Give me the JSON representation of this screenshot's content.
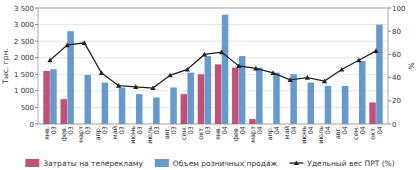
{
  "chart_data": {
    "type": "bar",
    "categories": [
      "янв.\n03",
      "фев.\n03",
      "март\n03",
      "апр.\n03",
      "май\n03",
      "июнь\n03",
      "июль\n03",
      "авг.\n03",
      "сен.\n03",
      "окт.\n03",
      "янв.\n04",
      "фев.\n04",
      "март\n04",
      "апр.\n04",
      "май\n04",
      "июнь\n04",
      "июль\n04",
      "авг.\n04",
      "сен.\n04",
      "окт.\n04"
    ],
    "series": [
      {
        "name": "Затраты на телерекламу",
        "color": "#c0507a",
        "values": [
          1600,
          750,
          0,
          0,
          0,
          0,
          0,
          0,
          900,
          1500,
          1800,
          1700,
          150,
          0,
          0,
          0,
          0,
          0,
          0,
          650
        ]
      },
      {
        "name": "Объем розничных продаж",
        "color": "#6699cc",
        "values": [
          1650,
          2800,
          1480,
          1250,
          1100,
          900,
          800,
          1100,
          1550,
          2050,
          3300,
          2050,
          1700,
          1550,
          1500,
          1250,
          1150,
          1150,
          1900,
          3000
        ]
      },
      {
        "name": "Удельный вес ПРТ (%)",
        "type": "line",
        "color": "#222222",
        "marker": "triangle",
        "axis": "y2",
        "values": [
          55,
          68,
          70,
          44,
          33,
          32,
          31,
          42,
          47,
          60,
          62,
          50,
          48,
          44,
          38,
          40,
          37,
          47,
          55,
          63
        ]
      }
    ],
    "ylabel": "Тыс. грн.",
    "y2label": "%",
    "ylim": [
      0,
      3500
    ],
    "yticks": [
      0,
      500,
      {
        "value": 1000,
        "label": "1 000"
      },
      {
        "value": 1500,
        "label": "1 500"
      },
      {
        "value": 2000,
        "label": "2 000"
      },
      {
        "value": 2500,
        "label": "2 500"
      },
      {
        "value": 3000,
        "label": "3 000"
      },
      {
        "value": 3500,
        "label": "3 500"
      }
    ],
    "y2lim": [
      0,
      100
    ],
    "y2ticks": [
      0,
      20,
      40,
      60,
      80,
      100
    ],
    "grid": true,
    "legend": "bottom"
  }
}
